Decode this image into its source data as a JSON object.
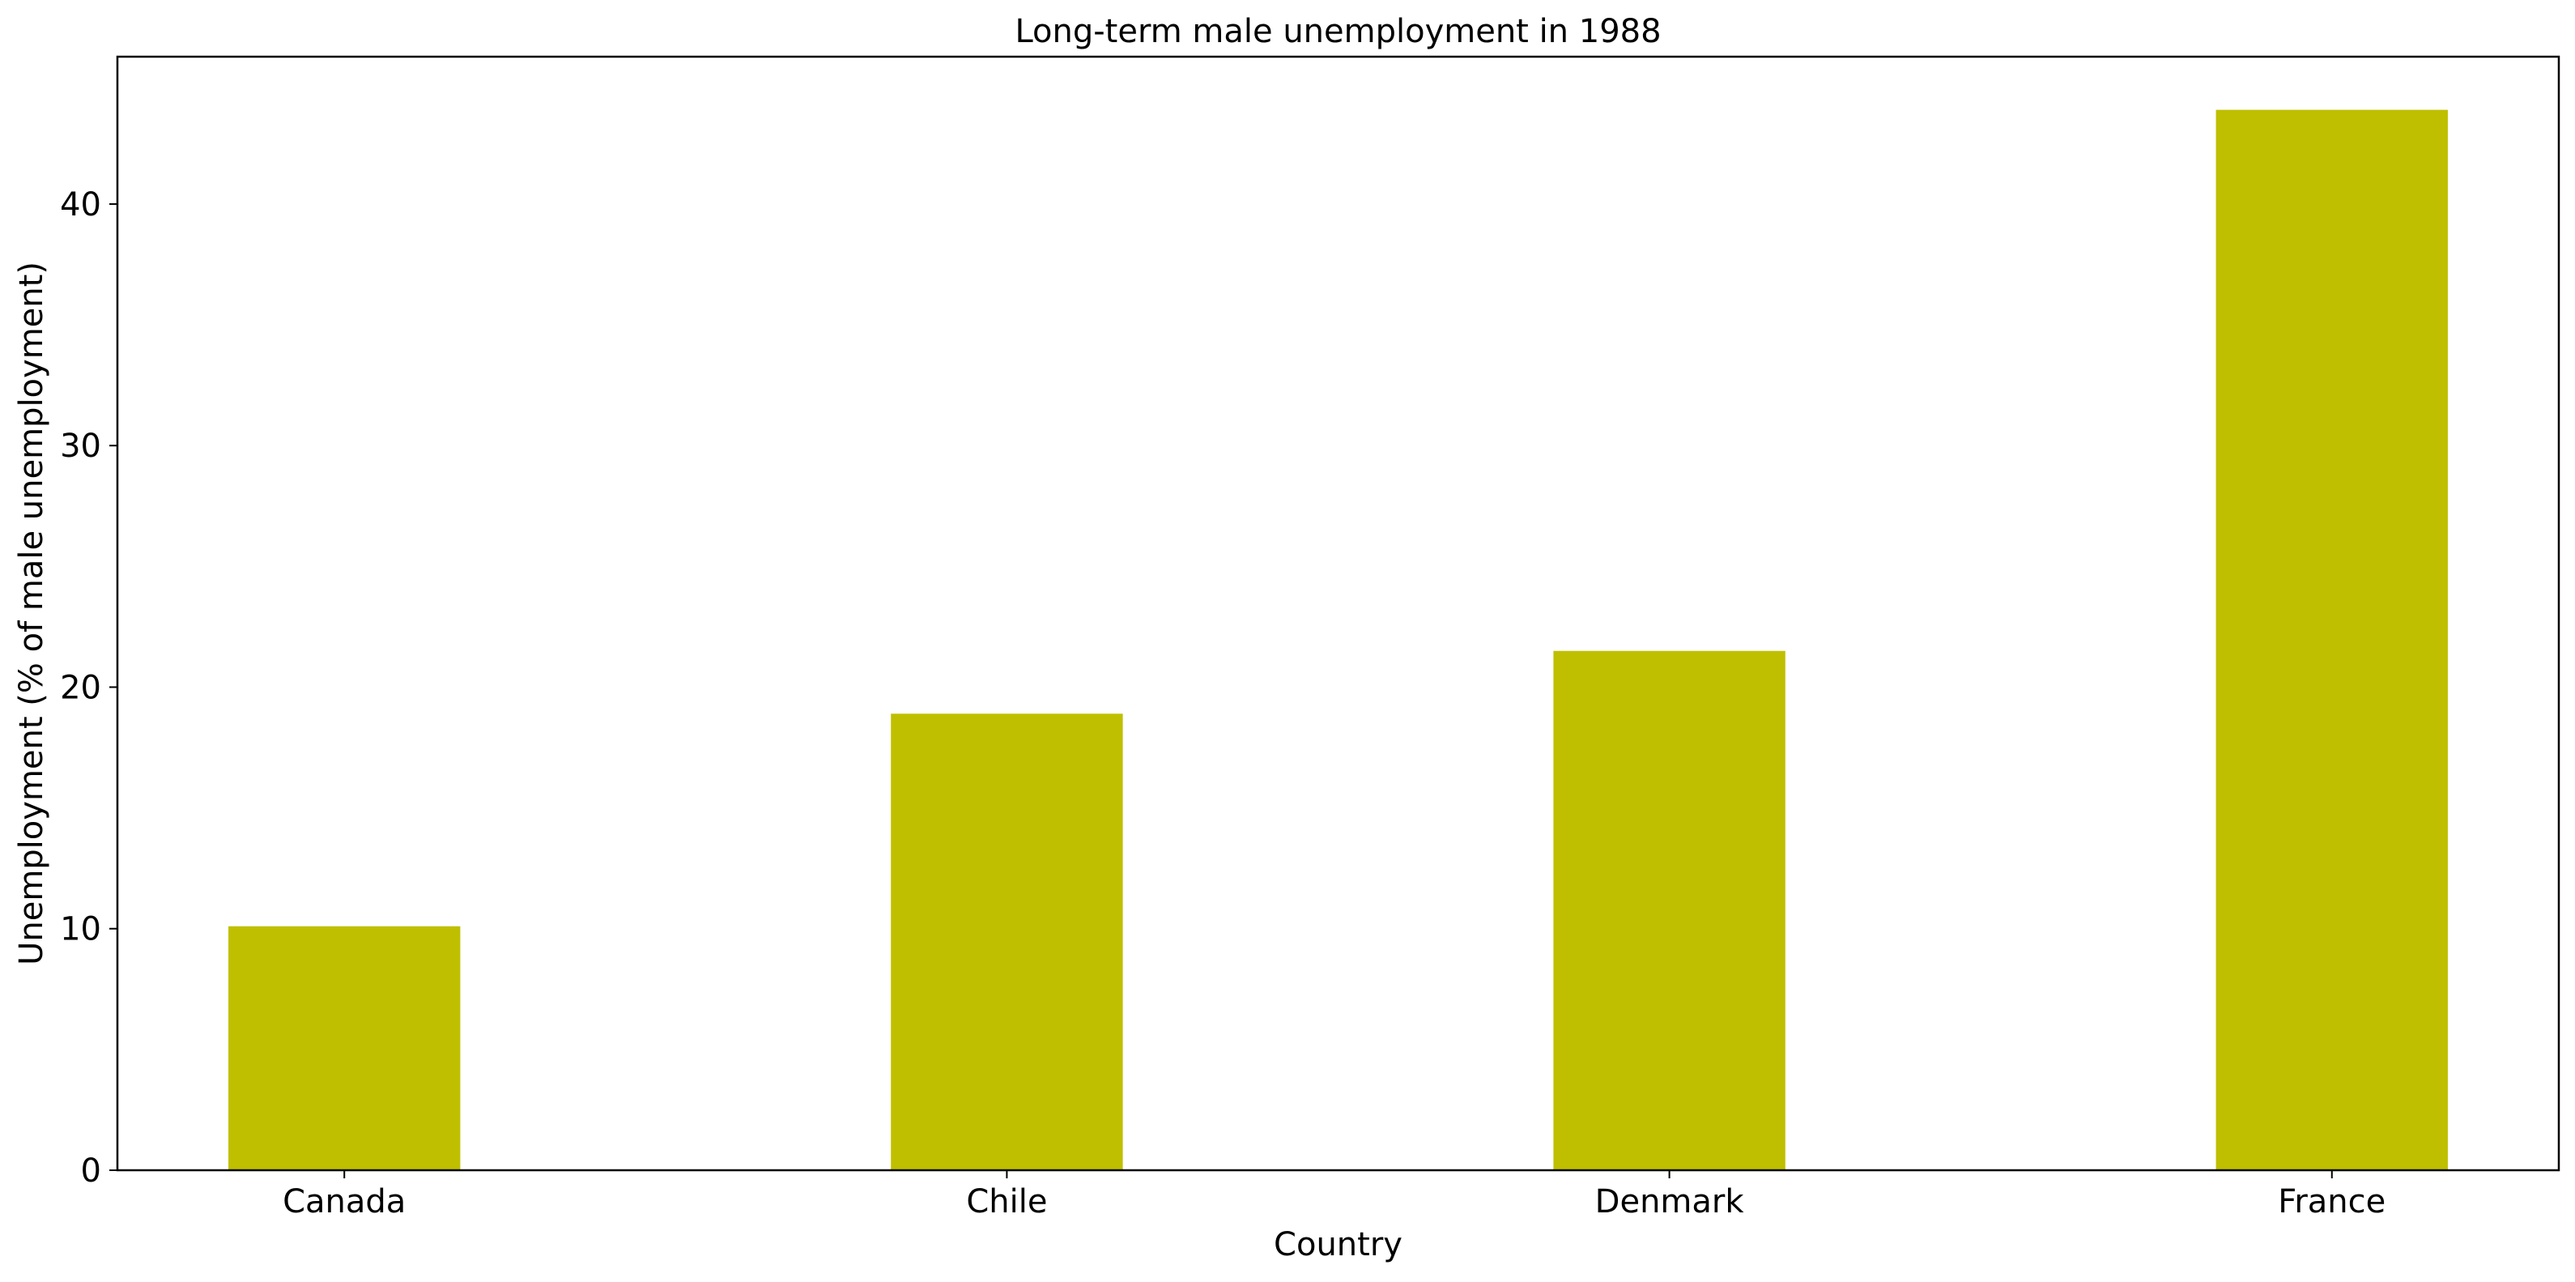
{
  "chart_data": {
    "type": "bar",
    "title": "Long-term male unemployment in 1988",
    "xlabel": "Country",
    "ylabel": "Unemployment (% of male unemployment)",
    "categories": [
      "Canada",
      "Chile",
      "Denmark",
      "France"
    ],
    "values": [
      10.1,
      18.9,
      21.5,
      43.9
    ],
    "ylim": [
      0,
      46.1
    ],
    "yticks": [
      0,
      10,
      20,
      30,
      40
    ],
    "grid": false,
    "legend": "none",
    "bar_color": "#bfbf00"
  }
}
